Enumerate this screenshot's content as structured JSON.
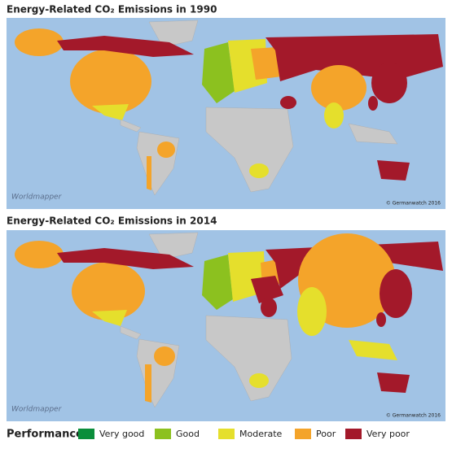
{
  "maps": [
    {
      "title": "Energy-Related CO₂ Emissions in 1990",
      "logo": "Worldmapper",
      "credit": "© Germanwatch 2016"
    },
    {
      "title": "Energy-Related CO₂ Emissions in 2014",
      "logo": "Worldmapper",
      "credit": "© Germanwatch 2016"
    }
  ],
  "legend": {
    "title": "Performance",
    "items": [
      {
        "label": "Very good",
        "color": "#0b8e3b"
      },
      {
        "label": "Good",
        "color": "#8cc11f"
      },
      {
        "label": "Moderate",
        "color": "#e5df2c"
      },
      {
        "label": "Poor",
        "color": "#f4a42a"
      },
      {
        "label": "Very poor",
        "color": "#a3192a"
      }
    ]
  }
}
